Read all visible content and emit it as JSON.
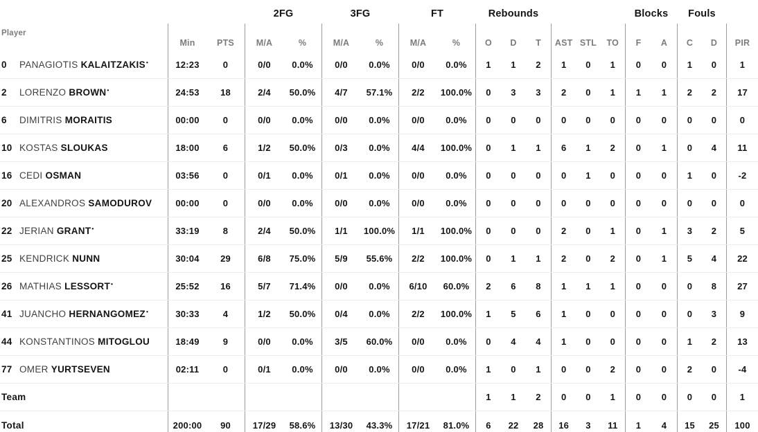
{
  "table": {
    "starter_mark": "•",
    "groups": {
      "fg2": "2FG",
      "fg3": "3FG",
      "ft": "FT",
      "rebounds": "Rebounds",
      "blocks": "Blocks",
      "fouls": "Fouls"
    },
    "headers": {
      "player": "Player",
      "min": "Min",
      "pts": "PTS",
      "ma": "M/A",
      "pct": "%",
      "o": "O",
      "d": "D",
      "t": "T",
      "ast": "AST",
      "stl": "STL",
      "to": "TO",
      "blk_f": "F",
      "blk_a": "A",
      "fls_c": "C",
      "fls_d": "D",
      "pir": "PIR"
    },
    "rows": [
      {
        "num": "0",
        "first": "PANAGIOTIS",
        "last": "KALAITZAKIS",
        "starter": true,
        "min": "12:23",
        "pts": "0",
        "fg2": "0/0",
        "fg2p": "0.0%",
        "fg3": "0/0",
        "fg3p": "0.0%",
        "ft": "0/0",
        "ftp": "0.0%",
        "o": "1",
        "d": "1",
        "t": "2",
        "ast": "1",
        "stl": "0",
        "to": "1",
        "f": "0",
        "a": "0",
        "c": "1",
        "dd": "0",
        "pir": "1"
      },
      {
        "num": "2",
        "first": "LORENZO",
        "last": "BROWN",
        "starter": true,
        "min": "24:53",
        "pts": "18",
        "fg2": "2/4",
        "fg2p": "50.0%",
        "fg3": "4/7",
        "fg3p": "57.1%",
        "ft": "2/2",
        "ftp": "100.0%",
        "o": "0",
        "d": "3",
        "t": "3",
        "ast": "2",
        "stl": "0",
        "to": "1",
        "f": "1",
        "a": "1",
        "c": "2",
        "dd": "2",
        "pir": "17"
      },
      {
        "num": "6",
        "first": "DIMITRIS",
        "last": "MORAITIS",
        "starter": false,
        "min": "00:00",
        "pts": "0",
        "fg2": "0/0",
        "fg2p": "0.0%",
        "fg3": "0/0",
        "fg3p": "0.0%",
        "ft": "0/0",
        "ftp": "0.0%",
        "o": "0",
        "d": "0",
        "t": "0",
        "ast": "0",
        "stl": "0",
        "to": "0",
        "f": "0",
        "a": "0",
        "c": "0",
        "dd": "0",
        "pir": "0"
      },
      {
        "num": "10",
        "first": "KOSTAS",
        "last": "SLOUKAS",
        "starter": false,
        "min": "18:00",
        "pts": "6",
        "fg2": "1/2",
        "fg2p": "50.0%",
        "fg3": "0/3",
        "fg3p": "0.0%",
        "ft": "4/4",
        "ftp": "100.0%",
        "o": "0",
        "d": "1",
        "t": "1",
        "ast": "6",
        "stl": "1",
        "to": "2",
        "f": "0",
        "a": "1",
        "c": "0",
        "dd": "4",
        "pir": "11"
      },
      {
        "num": "16",
        "first": "CEDI",
        "last": "OSMAN",
        "starter": false,
        "min": "03:56",
        "pts": "0",
        "fg2": "0/1",
        "fg2p": "0.0%",
        "fg3": "0/1",
        "fg3p": "0.0%",
        "ft": "0/0",
        "ftp": "0.0%",
        "o": "0",
        "d": "0",
        "t": "0",
        "ast": "0",
        "stl": "1",
        "to": "0",
        "f": "0",
        "a": "0",
        "c": "1",
        "dd": "0",
        "pir": "-2"
      },
      {
        "num": "20",
        "first": "ALEXANDROS",
        "last": "SAMODUROV",
        "starter": false,
        "min": "00:00",
        "pts": "0",
        "fg2": "0/0",
        "fg2p": "0.0%",
        "fg3": "0/0",
        "fg3p": "0.0%",
        "ft": "0/0",
        "ftp": "0.0%",
        "o": "0",
        "d": "0",
        "t": "0",
        "ast": "0",
        "stl": "0",
        "to": "0",
        "f": "0",
        "a": "0",
        "c": "0",
        "dd": "0",
        "pir": "0"
      },
      {
        "num": "22",
        "first": "JERIAN",
        "last": "GRANT",
        "starter": true,
        "min": "33:19",
        "pts": "8",
        "fg2": "2/4",
        "fg2p": "50.0%",
        "fg3": "1/1",
        "fg3p": "100.0%",
        "ft": "1/1",
        "ftp": "100.0%",
        "o": "0",
        "d": "0",
        "t": "0",
        "ast": "2",
        "stl": "0",
        "to": "1",
        "f": "0",
        "a": "1",
        "c": "3",
        "dd": "2",
        "pir": "5"
      },
      {
        "num": "25",
        "first": "KENDRICK",
        "last": "NUNN",
        "starter": false,
        "min": "30:04",
        "pts": "29",
        "fg2": "6/8",
        "fg2p": "75.0%",
        "fg3": "5/9",
        "fg3p": "55.6%",
        "ft": "2/2",
        "ftp": "100.0%",
        "o": "0",
        "d": "1",
        "t": "1",
        "ast": "2",
        "stl": "0",
        "to": "2",
        "f": "0",
        "a": "1",
        "c": "5",
        "dd": "4",
        "pir": "22"
      },
      {
        "num": "26",
        "first": "MATHIAS",
        "last": "LESSORT",
        "starter": true,
        "min": "25:52",
        "pts": "16",
        "fg2": "5/7",
        "fg2p": "71.4%",
        "fg3": "0/0",
        "fg3p": "0.0%",
        "ft": "6/10",
        "ftp": "60.0%",
        "o": "2",
        "d": "6",
        "t": "8",
        "ast": "1",
        "stl": "1",
        "to": "1",
        "f": "0",
        "a": "0",
        "c": "0",
        "dd": "8",
        "pir": "27"
      },
      {
        "num": "41",
        "first": "JUANCHO",
        "last": "HERNANGOMEZ",
        "starter": true,
        "min": "30:33",
        "pts": "4",
        "fg2": "1/2",
        "fg2p": "50.0%",
        "fg3": "0/4",
        "fg3p": "0.0%",
        "ft": "2/2",
        "ftp": "100.0%",
        "o": "1",
        "d": "5",
        "t": "6",
        "ast": "1",
        "stl": "0",
        "to": "0",
        "f": "0",
        "a": "0",
        "c": "0",
        "dd": "3",
        "pir": "9"
      },
      {
        "num": "44",
        "first": "KONSTANTINOS",
        "last": "MITOGLOU",
        "starter": false,
        "min": "18:49",
        "pts": "9",
        "fg2": "0/0",
        "fg2p": "0.0%",
        "fg3": "3/5",
        "fg3p": "60.0%",
        "ft": "0/0",
        "ftp": "0.0%",
        "o": "0",
        "d": "4",
        "t": "4",
        "ast": "1",
        "stl": "0",
        "to": "0",
        "f": "0",
        "a": "0",
        "c": "1",
        "dd": "2",
        "pir": "13"
      },
      {
        "num": "77",
        "first": "OMER",
        "last": "YURTSEVEN",
        "starter": false,
        "min": "02:11",
        "pts": "0",
        "fg2": "0/1",
        "fg2p": "0.0%",
        "fg3": "0/0",
        "fg3p": "0.0%",
        "ft": "0/0",
        "ftp": "0.0%",
        "o": "1",
        "d": "0",
        "t": "1",
        "ast": "0",
        "stl": "0",
        "to": "2",
        "f": "0",
        "a": "0",
        "c": "2",
        "dd": "0",
        "pir": "-4"
      },
      {
        "label": "Team",
        "min": "",
        "pts": "",
        "fg2": "",
        "fg2p": "",
        "fg3": "",
        "fg3p": "",
        "ft": "",
        "ftp": "",
        "o": "1",
        "d": "1",
        "t": "2",
        "ast": "0",
        "stl": "0",
        "to": "1",
        "f": "0",
        "a": "0",
        "c": "0",
        "dd": "0",
        "pir": "1"
      },
      {
        "label": "Total",
        "min": "200:00",
        "pts": "90",
        "fg2": "17/29",
        "fg2p": "58.6%",
        "fg3": "13/30",
        "fg3p": "43.3%",
        "ft": "17/21",
        "ftp": "81.0%",
        "o": "6",
        "d": "22",
        "t": "28",
        "ast": "16",
        "stl": "3",
        "to": "11",
        "f": "1",
        "a": "4",
        "c": "15",
        "dd": "25",
        "pir": "100"
      }
    ]
  }
}
